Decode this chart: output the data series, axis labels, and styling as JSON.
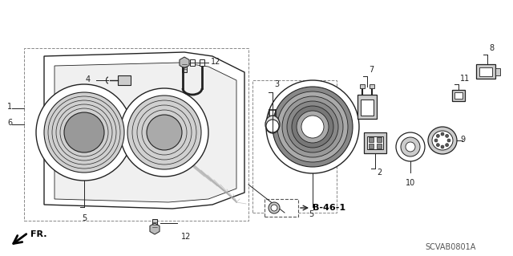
{
  "bg_color": "#ffffff",
  "line_color": "#222222",
  "gray_fill": "#cccccc",
  "light_gray": "#e8e8e8",
  "diagram_code": "SCVAB0801A",
  "ref_code": "B-46-1",
  "figsize": [
    6.4,
    3.19
  ],
  "dpi": 100
}
